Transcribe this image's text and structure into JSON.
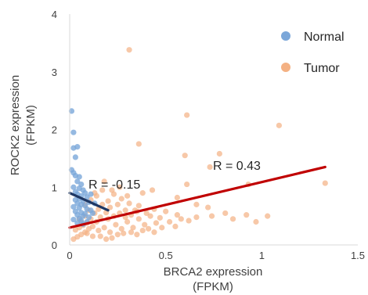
{
  "chart_data": {
    "type": "scatter",
    "xlabel": [
      "BRCA2 expression",
      "(FPKM)"
    ],
    "ylabel": [
      "ROCK2 expression",
      "(FPKM)"
    ],
    "xlim": [
      0,
      1.5
    ],
    "ylim": [
      0,
      4
    ],
    "xticks": [
      "0",
      "0.5",
      "1",
      "1.5"
    ],
    "yticks": [
      "0",
      "1",
      "2",
      "3",
      "4"
    ],
    "grid": false,
    "legend_position": "top-right",
    "series": [
      {
        "name": "Normal",
        "color": "#7ba7d9",
        "points": [
          [
            0.01,
            2.32
          ],
          [
            0.02,
            1.95
          ],
          [
            0.02,
            1.68
          ],
          [
            0.04,
            1.7
          ],
          [
            0.03,
            1.52
          ],
          [
            0.01,
            1.3
          ],
          [
            0.02,
            1.25
          ],
          [
            0.03,
            1.2
          ],
          [
            0.05,
            1.18
          ],
          [
            0.04,
            1.1
          ],
          [
            0.06,
            1.05
          ],
          [
            0.02,
            1.0
          ],
          [
            0.05,
            0.98
          ],
          [
            0.07,
            0.95
          ],
          [
            0.03,
            0.92
          ],
          [
            0.08,
            0.9
          ],
          [
            0.04,
            0.88
          ],
          [
            0.06,
            0.85
          ],
          [
            0.09,
            0.83
          ],
          [
            0.05,
            0.8
          ],
          [
            0.03,
            0.78
          ],
          [
            0.07,
            0.76
          ],
          [
            0.1,
            0.74
          ],
          [
            0.04,
            0.72
          ],
          [
            0.06,
            0.7
          ],
          [
            0.08,
            0.68
          ],
          [
            0.02,
            0.66
          ],
          [
            0.05,
            0.64
          ],
          [
            0.09,
            0.62
          ],
          [
            0.11,
            0.6
          ],
          [
            0.03,
            0.58
          ],
          [
            0.06,
            0.56
          ],
          [
            0.08,
            0.54
          ],
          [
            0.04,
            0.52
          ],
          [
            0.07,
            0.5
          ],
          [
            0.1,
            0.48
          ],
          [
            0.05,
            0.46
          ],
          [
            0.02,
            0.44
          ],
          [
            0.06,
            0.42
          ],
          [
            0.09,
            0.4
          ],
          [
            0.04,
            0.38
          ],
          [
            0.07,
            0.36
          ],
          [
            0.12,
            0.55
          ],
          [
            0.13,
            0.72
          ],
          [
            0.11,
            0.88
          ]
        ],
        "fit_label": "R = -0.15",
        "fit_line": [
          [
            0.0,
            0.9
          ],
          [
            0.2,
            0.6
          ]
        ],
        "fit_color": "#1f3864"
      },
      {
        "name": "Tumor",
        "color": "#f4b183",
        "points": [
          [
            0.31,
            3.38
          ],
          [
            0.61,
            2.25
          ],
          [
            1.09,
            2.07
          ],
          [
            0.36,
            1.75
          ],
          [
            0.78,
            1.58
          ],
          [
            0.6,
            1.55
          ],
          [
            0.73,
            1.35
          ],
          [
            1.33,
            1.07
          ],
          [
            0.93,
            1.05
          ],
          [
            0.61,
            1.05
          ],
          [
            0.43,
            0.95
          ],
          [
            0.38,
            0.9
          ],
          [
            0.56,
            0.82
          ],
          [
            0.66,
            0.7
          ],
          [
            0.72,
            0.65
          ],
          [
            0.81,
            0.55
          ],
          [
            0.92,
            0.52
          ],
          [
            1.03,
            0.5
          ],
          [
            0.97,
            0.4
          ],
          [
            0.85,
            0.45
          ],
          [
            0.74,
            0.5
          ],
          [
            0.66,
            0.48
          ],
          [
            0.62,
            0.42
          ],
          [
            0.56,
            0.52
          ],
          [
            0.5,
            0.58
          ],
          [
            0.47,
            0.47
          ],
          [
            0.44,
            0.62
          ],
          [
            0.4,
            0.55
          ],
          [
            0.36,
            0.68
          ],
          [
            0.34,
            0.6
          ],
          [
            0.31,
            0.72
          ],
          [
            0.29,
            0.6
          ],
          [
            0.27,
            0.8
          ],
          [
            0.25,
            0.7
          ],
          [
            0.23,
            0.88
          ],
          [
            0.21,
            0.65
          ],
          [
            0.2,
            0.76
          ],
          [
            0.19,
            0.56
          ],
          [
            0.17,
            0.7
          ],
          [
            0.16,
            0.48
          ],
          [
            0.15,
            0.62
          ],
          [
            0.14,
            0.4
          ],
          [
            0.13,
            0.55
          ],
          [
            0.12,
            0.32
          ],
          [
            0.11,
            0.45
          ],
          [
            0.1,
            0.28
          ],
          [
            0.09,
            0.38
          ],
          [
            0.08,
            0.22
          ],
          [
            0.07,
            0.34
          ],
          [
            0.06,
            0.18
          ],
          [
            0.05,
            0.3
          ],
          [
            0.04,
            0.14
          ],
          [
            0.03,
            0.26
          ],
          [
            0.02,
            0.1
          ],
          [
            0.06,
            0.4
          ],
          [
            0.09,
            0.2
          ],
          [
            0.12,
            0.15
          ],
          [
            0.15,
            0.25
          ],
          [
            0.18,
            0.3
          ],
          [
            0.21,
            0.22
          ],
          [
            0.24,
            0.35
          ],
          [
            0.27,
            0.28
          ],
          [
            0.3,
            0.4
          ],
          [
            0.33,
            0.3
          ],
          [
            0.36,
            0.45
          ],
          [
            0.39,
            0.35
          ],
          [
            0.42,
            0.5
          ],
          [
            0.45,
            0.38
          ],
          [
            0.48,
            0.3
          ],
          [
            0.52,
            0.4
          ],
          [
            0.55,
            0.32
          ],
          [
            0.58,
            0.45
          ],
          [
            0.14,
            0.85
          ],
          [
            0.18,
            1.1
          ],
          [
            0.22,
            0.95
          ],
          [
            0.26,
            1.0
          ],
          [
            0.3,
            0.85
          ],
          [
            0.1,
            0.6
          ],
          [
            0.08,
            0.5
          ],
          [
            0.05,
            0.45
          ],
          [
            0.16,
            0.15
          ],
          [
            0.19,
            0.1
          ],
          [
            0.22,
            0.12
          ],
          [
            0.25,
            0.18
          ],
          [
            0.28,
            0.2
          ],
          [
            0.32,
            0.22
          ],
          [
            0.35,
            0.18
          ],
          [
            0.38,
            0.25
          ],
          [
            0.41,
            0.28
          ],
          [
            0.44,
            0.22
          ],
          [
            0.08,
            0.7
          ],
          [
            0.11,
            0.78
          ],
          [
            0.13,
            0.9
          ],
          [
            0.17,
            0.95
          ],
          [
            0.2,
            0.45
          ],
          [
            0.23,
            0.5
          ],
          [
            0.26,
            0.55
          ],
          [
            0.29,
            0.48
          ],
          [
            0.32,
            0.52
          ],
          [
            0.35,
            0.58
          ]
        ],
        "fit_label": "R = 0.43",
        "fit_line": [
          [
            0.0,
            0.3
          ],
          [
            1.33,
            1.35
          ]
        ],
        "fit_color": "#c00000"
      }
    ]
  }
}
